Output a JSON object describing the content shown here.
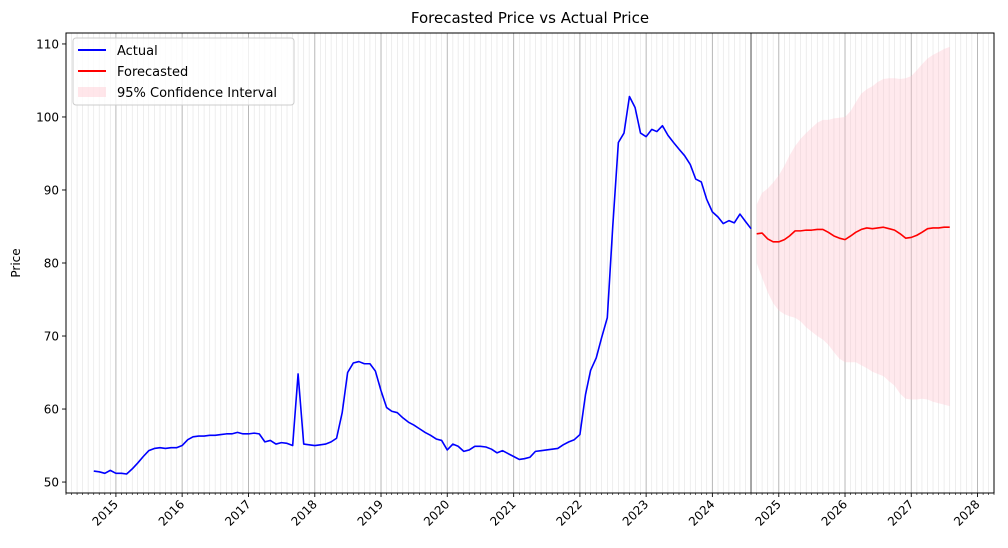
{
  "chart_data": {
    "type": "line",
    "title": "Forecasted Price vs Actual Price",
    "xlabel": "",
    "ylabel": "Price",
    "xlim": [
      "2014-04-01",
      "2028-04-01"
    ],
    "ylim": [
      48.5,
      111.5
    ],
    "x_ticks": [
      "2015",
      "2016",
      "2017",
      "2018",
      "2019",
      "2020",
      "2021",
      "2022",
      "2023",
      "2024",
      "2025",
      "2026",
      "2027",
      "2028"
    ],
    "y_ticks": [
      50,
      60,
      70,
      80,
      90,
      100,
      110
    ],
    "grid": "vertical, monthly",
    "legend": "top-left",
    "split_date": "2024-08-01",
    "series": [
      {
        "name": "Actual",
        "color": "#0000ff",
        "points": [
          [
            "2014-09-01",
            51.5
          ],
          [
            "2014-10-01",
            51.4
          ],
          [
            "2014-11-01",
            51.2
          ],
          [
            "2014-12-01",
            51.6
          ],
          [
            "2015-01-01",
            51.2
          ],
          [
            "2015-02-01",
            51.2
          ],
          [
            "2015-03-01",
            51.1
          ],
          [
            "2015-04-01",
            51.8
          ],
          [
            "2015-05-01",
            52.6
          ],
          [
            "2015-06-01",
            53.5
          ],
          [
            "2015-07-01",
            54.3
          ],
          [
            "2015-08-01",
            54.6
          ],
          [
            "2015-09-01",
            54.7
          ],
          [
            "2015-10-01",
            54.6
          ],
          [
            "2015-11-01",
            54.7
          ],
          [
            "2015-12-01",
            54.7
          ],
          [
            "2016-01-01",
            55.0
          ],
          [
            "2016-02-01",
            55.8
          ],
          [
            "2016-03-01",
            56.2
          ],
          [
            "2016-04-01",
            56.3
          ],
          [
            "2016-05-01",
            56.3
          ],
          [
            "2016-06-01",
            56.4
          ],
          [
            "2016-07-01",
            56.4
          ],
          [
            "2016-08-01",
            56.5
          ],
          [
            "2016-09-01",
            56.6
          ],
          [
            "2016-10-01",
            56.6
          ],
          [
            "2016-11-01",
            56.8
          ],
          [
            "2016-12-01",
            56.6
          ],
          [
            "2017-01-01",
            56.6
          ],
          [
            "2017-02-01",
            56.7
          ],
          [
            "2017-03-01",
            56.6
          ],
          [
            "2017-04-01",
            55.5
          ],
          [
            "2017-05-01",
            55.7
          ],
          [
            "2017-06-01",
            55.2
          ],
          [
            "2017-07-01",
            55.4
          ],
          [
            "2017-08-01",
            55.3
          ],
          [
            "2017-09-01",
            55.0
          ],
          [
            "2017-10-01",
            64.8
          ],
          [
            "2017-11-01",
            55.2
          ],
          [
            "2017-12-01",
            55.1
          ],
          [
            "2018-01-01",
            55.0
          ],
          [
            "2018-02-01",
            55.1
          ],
          [
            "2018-03-01",
            55.2
          ],
          [
            "2018-04-01",
            55.5
          ],
          [
            "2018-05-01",
            56.0
          ],
          [
            "2018-06-01",
            59.5
          ],
          [
            "2018-07-01",
            65.0
          ],
          [
            "2018-08-01",
            66.3
          ],
          [
            "2018-09-01",
            66.5
          ],
          [
            "2018-10-01",
            66.2
          ],
          [
            "2018-11-01",
            66.2
          ],
          [
            "2018-12-01",
            65.2
          ],
          [
            "2019-01-01",
            62.5
          ],
          [
            "2019-02-01",
            60.2
          ],
          [
            "2019-03-01",
            59.7
          ],
          [
            "2019-04-01",
            59.5
          ],
          [
            "2019-05-01",
            58.8
          ],
          [
            "2019-06-01",
            58.2
          ],
          [
            "2019-07-01",
            57.8
          ],
          [
            "2019-08-01",
            57.3
          ],
          [
            "2019-09-01",
            56.8
          ],
          [
            "2019-10-01",
            56.4
          ],
          [
            "2019-11-01",
            55.9
          ],
          [
            "2019-12-01",
            55.7
          ],
          [
            "2020-01-01",
            54.4
          ],
          [
            "2020-02-01",
            55.2
          ],
          [
            "2020-03-01",
            54.9
          ],
          [
            "2020-04-01",
            54.2
          ],
          [
            "2020-05-01",
            54.4
          ],
          [
            "2020-06-01",
            54.9
          ],
          [
            "2020-07-01",
            54.9
          ],
          [
            "2020-08-01",
            54.8
          ],
          [
            "2020-09-01",
            54.5
          ],
          [
            "2020-10-01",
            54.0
          ],
          [
            "2020-11-01",
            54.3
          ],
          [
            "2020-12-01",
            53.9
          ],
          [
            "2021-01-01",
            53.5
          ],
          [
            "2021-02-01",
            53.1
          ],
          [
            "2021-03-01",
            53.2
          ],
          [
            "2021-04-01",
            53.4
          ],
          [
            "2021-05-01",
            54.2
          ],
          [
            "2021-06-01",
            54.3
          ],
          [
            "2021-07-01",
            54.4
          ],
          [
            "2021-08-01",
            54.5
          ],
          [
            "2021-09-01",
            54.6
          ],
          [
            "2021-10-01",
            55.1
          ],
          [
            "2021-11-01",
            55.5
          ],
          [
            "2021-12-01",
            55.8
          ],
          [
            "2022-01-01",
            56.5
          ],
          [
            "2022-02-01",
            62.0
          ],
          [
            "2022-03-01",
            65.3
          ],
          [
            "2022-04-01",
            67.0
          ],
          [
            "2022-05-01",
            69.8
          ],
          [
            "2022-06-01",
            72.5
          ],
          [
            "2022-07-01",
            85.0
          ],
          [
            "2022-08-01",
            96.5
          ],
          [
            "2022-09-01",
            97.8
          ],
          [
            "2022-10-01",
            102.8
          ],
          [
            "2022-11-01",
            101.3
          ],
          [
            "2022-12-01",
            97.8
          ],
          [
            "2023-01-01",
            97.3
          ],
          [
            "2023-02-01",
            98.3
          ],
          [
            "2023-03-01",
            98.0
          ],
          [
            "2023-04-01",
            98.8
          ],
          [
            "2023-05-01",
            97.5
          ],
          [
            "2023-06-01",
            96.5
          ],
          [
            "2023-07-01",
            95.6
          ],
          [
            "2023-08-01",
            94.7
          ],
          [
            "2023-09-01",
            93.5
          ],
          [
            "2023-10-01",
            91.5
          ],
          [
            "2023-11-01",
            91.1
          ],
          [
            "2023-12-01",
            88.7
          ],
          [
            "2024-01-01",
            87.0
          ],
          [
            "2024-02-01",
            86.3
          ],
          [
            "2024-03-01",
            85.4
          ],
          [
            "2024-04-01",
            85.8
          ],
          [
            "2024-05-01",
            85.5
          ],
          [
            "2024-06-01",
            86.7
          ],
          [
            "2024-07-01",
            85.7
          ],
          [
            "2024-08-01",
            84.7
          ]
        ]
      },
      {
        "name": "Forecasted",
        "color": "#ff0000",
        "points": [
          [
            "2024-09-01",
            84.0
          ],
          [
            "2024-10-01",
            84.1
          ],
          [
            "2024-11-01",
            83.3
          ],
          [
            "2024-12-01",
            82.9
          ],
          [
            "2025-01-01",
            82.9
          ],
          [
            "2025-02-01",
            83.2
          ],
          [
            "2025-03-01",
            83.7
          ],
          [
            "2025-04-01",
            84.4
          ],
          [
            "2025-05-01",
            84.4
          ],
          [
            "2025-06-01",
            84.5
          ],
          [
            "2025-07-01",
            84.5
          ],
          [
            "2025-08-01",
            84.6
          ],
          [
            "2025-09-01",
            84.6
          ],
          [
            "2025-10-01",
            84.2
          ],
          [
            "2025-11-01",
            83.7
          ],
          [
            "2025-12-01",
            83.4
          ],
          [
            "2026-01-01",
            83.2
          ],
          [
            "2026-02-01",
            83.7
          ],
          [
            "2026-03-01",
            84.2
          ],
          [
            "2026-04-01",
            84.6
          ],
          [
            "2026-05-01",
            84.8
          ],
          [
            "2026-06-01",
            84.7
          ],
          [
            "2026-07-01",
            84.8
          ],
          [
            "2026-08-01",
            84.9
          ],
          [
            "2026-09-01",
            84.7
          ],
          [
            "2026-10-01",
            84.5
          ],
          [
            "2026-11-01",
            84.0
          ],
          [
            "2026-12-01",
            83.4
          ],
          [
            "2027-01-01",
            83.5
          ],
          [
            "2027-02-01",
            83.8
          ],
          [
            "2027-03-01",
            84.2
          ],
          [
            "2027-04-01",
            84.7
          ],
          [
            "2027-05-01",
            84.8
          ],
          [
            "2027-06-01",
            84.8
          ],
          [
            "2027-07-01",
            84.9
          ],
          [
            "2027-08-01",
            84.9
          ]
        ]
      }
    ],
    "interval": {
      "name": "95% Confidence Interval",
      "color": "#ffc0cb",
      "points": [
        [
          "2024-09-01",
          80.0,
          88.0
        ],
        [
          "2024-10-01",
          78.0,
          89.6
        ],
        [
          "2024-11-01",
          76.0,
          90.2
        ],
        [
          "2024-12-01",
          74.5,
          91.0
        ],
        [
          "2025-01-01",
          73.5,
          92.0
        ],
        [
          "2025-02-01",
          73.0,
          93.3
        ],
        [
          "2025-03-01",
          72.7,
          94.7
        ],
        [
          "2025-04-01",
          72.5,
          96.0
        ],
        [
          "2025-05-01",
          72.0,
          97.0
        ],
        [
          "2025-06-01",
          71.2,
          97.8
        ],
        [
          "2025-07-01",
          70.6,
          98.5
        ],
        [
          "2025-08-01",
          70.0,
          99.2
        ],
        [
          "2025-09-01",
          69.5,
          99.6
        ],
        [
          "2025-10-01",
          68.8,
          99.6
        ],
        [
          "2025-11-01",
          67.8,
          99.8
        ],
        [
          "2025-12-01",
          66.9,
          99.9
        ],
        [
          "2026-01-01",
          66.4,
          100.0
        ],
        [
          "2026-02-01",
          66.4,
          100.8
        ],
        [
          "2026-03-01",
          66.4,
          102.0
        ],
        [
          "2026-04-01",
          66.0,
          103.2
        ],
        [
          "2026-05-01",
          65.6,
          103.8
        ],
        [
          "2026-06-01",
          65.1,
          104.2
        ],
        [
          "2026-07-01",
          64.8,
          104.8
        ],
        [
          "2026-08-01",
          64.5,
          105.2
        ],
        [
          "2026-09-01",
          63.8,
          105.3
        ],
        [
          "2026-10-01",
          63.2,
          105.3
        ],
        [
          "2026-11-01",
          62.1,
          105.2
        ],
        [
          "2026-12-01",
          61.4,
          105.3
        ],
        [
          "2027-01-01",
          61.3,
          105.6
        ],
        [
          "2027-02-01",
          61.3,
          106.4
        ],
        [
          "2027-03-01",
          61.4,
          107.2
        ],
        [
          "2027-04-01",
          61.3,
          108.0
        ],
        [
          "2027-05-01",
          61.0,
          108.5
        ],
        [
          "2027-06-01",
          60.8,
          108.9
        ],
        [
          "2027-07-01",
          60.6,
          109.3
        ],
        [
          "2027-08-01",
          60.4,
          109.6
        ]
      ]
    }
  }
}
